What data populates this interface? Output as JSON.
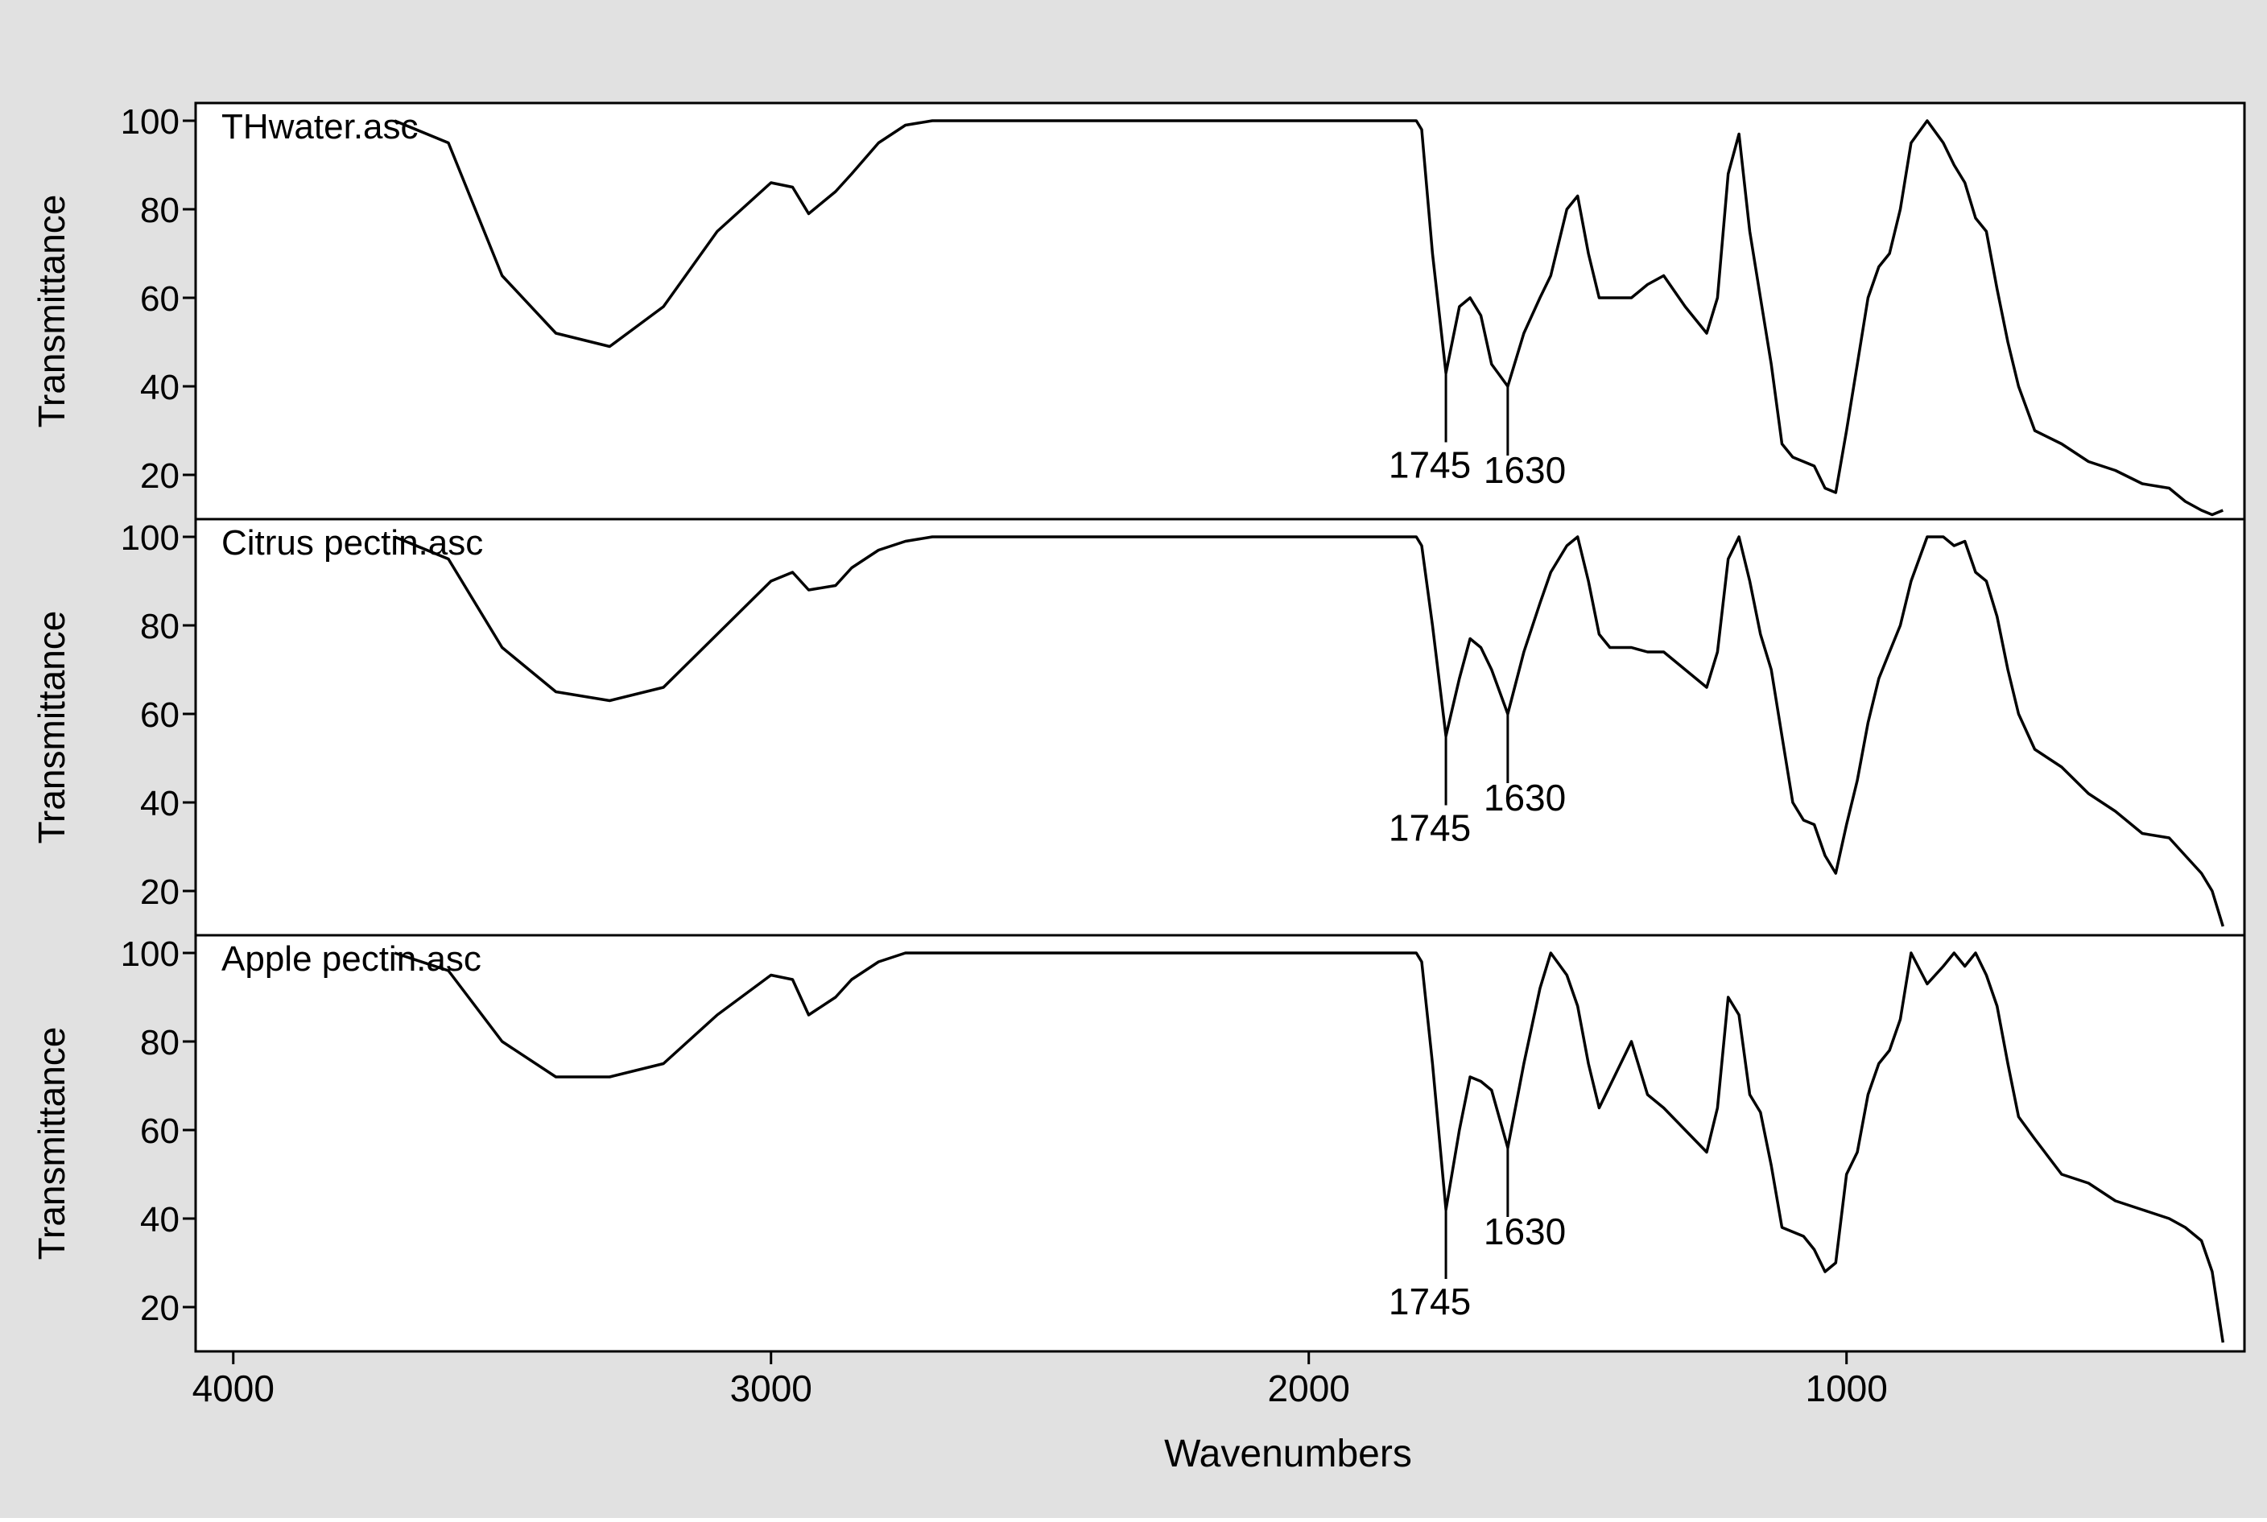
{
  "colors": {
    "frame": "#e1e1e1",
    "plot_bg": "#ffffff",
    "ink": "#000000"
  },
  "chart_data": {
    "type": "line",
    "xlabel": "Wavenumbers",
    "ylabel": "Transmittance",
    "xlim": [
      4070,
      260
    ],
    "x_ticks": [
      4000,
      3000,
      2000,
      1000
    ],
    "x_tick_labels": [
      "4000",
      "3000",
      "2000",
      "1000"
    ],
    "grid": false,
    "legend": "none",
    "panels": [
      {
        "name": "THwater.asc",
        "ylim": [
          10,
          104
        ],
        "y_ticks": [
          20,
          40,
          60,
          80,
          100
        ],
        "y_tick_labels": [
          "20",
          "40",
          "60",
          "80",
          "100"
        ],
        "annotations": [
          {
            "label": "1745",
            "x": 1745,
            "y": 43
          },
          {
            "label": "1630",
            "x": 1630,
            "y": 40
          }
        ],
        "x": [
          3700,
          3600,
          3500,
          3400,
          3300,
          3200,
          3100,
          3000,
          2960,
          2930,
          2880,
          2850,
          2800,
          2750,
          2700,
          2500,
          2300,
          2100,
          1900,
          1800,
          1790,
          1770,
          1745,
          1720,
          1700,
          1680,
          1660,
          1630,
          1600,
          1570,
          1550,
          1520,
          1500,
          1480,
          1460,
          1440,
          1400,
          1370,
          1340,
          1300,
          1260,
          1240,
          1220,
          1200,
          1180,
          1160,
          1140,
          1120,
          1100,
          1080,
          1060,
          1040,
          1020,
          1000,
          980,
          960,
          940,
          920,
          900,
          880,
          850,
          820,
          800,
          780,
          760,
          740,
          720,
          700,
          680,
          650,
          600,
          550,
          500,
          450,
          400,
          370,
          340,
          320,
          300
        ],
        "y": [
          100,
          95,
          65,
          52,
          49,
          58,
          75,
          86,
          85,
          79,
          84,
          88,
          95,
          99,
          100,
          100,
          100,
          100,
          100,
          100,
          98,
          70,
          43,
          58,
          60,
          56,
          45,
          40,
          52,
          60,
          65,
          80,
          83,
          70,
          60,
          60,
          60,
          63,
          65,
          58,
          52,
          60,
          88,
          97,
          75,
          60,
          45,
          27,
          24,
          23,
          22,
          17,
          16,
          30,
          45,
          60,
          67,
          70,
          80,
          95,
          100,
          95,
          90,
          86,
          78,
          75,
          62,
          50,
          40,
          30,
          27,
          23,
          21,
          18,
          17,
          14,
          12,
          11,
          12
        ]
      },
      {
        "name": "Citrus pectin.asc",
        "ylim": [
          10,
          104
        ],
        "y_ticks": [
          20,
          40,
          60,
          80,
          100
        ],
        "y_tick_labels": [
          "20",
          "40",
          "60",
          "80",
          "100"
        ],
        "annotations": [
          {
            "label": "1745",
            "x": 1745,
            "y": 55
          },
          {
            "label": "1630",
            "x": 1630,
            "y": 60
          }
        ],
        "x": [
          3700,
          3600,
          3500,
          3400,
          3300,
          3200,
          3100,
          3000,
          2960,
          2930,
          2880,
          2850,
          2800,
          2750,
          2700,
          2500,
          2300,
          2100,
          1900,
          1800,
          1790,
          1770,
          1745,
          1720,
          1700,
          1680,
          1660,
          1630,
          1600,
          1570,
          1550,
          1520,
          1500,
          1480,
          1460,
          1440,
          1400,
          1370,
          1340,
          1300,
          1260,
          1240,
          1220,
          1200,
          1180,
          1160,
          1140,
          1120,
          1100,
          1080,
          1060,
          1040,
          1020,
          1000,
          980,
          960,
          940,
          920,
          900,
          880,
          850,
          820,
          800,
          780,
          760,
          740,
          720,
          700,
          680,
          650,
          600,
          550,
          500,
          450,
          400,
          370,
          340,
          320,
          300
        ],
        "y": [
          100,
          95,
          75,
          65,
          63,
          66,
          78,
          90,
          92,
          88,
          89,
          93,
          97,
          99,
          100,
          100,
          100,
          100,
          100,
          100,
          98,
          80,
          55,
          68,
          77,
          75,
          70,
          60,
          74,
          85,
          92,
          98,
          100,
          90,
          78,
          75,
          75,
          74,
          74,
          70,
          66,
          74,
          95,
          100,
          90,
          78,
          70,
          55,
          40,
          36,
          35,
          28,
          24,
          35,
          45,
          58,
          68,
          74,
          80,
          90,
          100,
          100,
          98,
          99,
          92,
          90,
          82,
          70,
          60,
          52,
          48,
          42,
          38,
          33,
          32,
          28,
          24,
          20,
          12
        ]
      },
      {
        "name": "Apple pectin.asc",
        "ylim": [
          10,
          104
        ],
        "y_ticks": [
          20,
          40,
          60,
          80,
          100
        ],
        "y_tick_labels": [
          "20",
          "40",
          "60",
          "80",
          "100"
        ],
        "annotations": [
          {
            "label": "1745",
            "x": 1745,
            "y": 42
          },
          {
            "label": "1630",
            "x": 1630,
            "y": 56
          }
        ],
        "x": [
          3700,
          3600,
          3500,
          3400,
          3300,
          3200,
          3100,
          3000,
          2960,
          2930,
          2880,
          2850,
          2800,
          2750,
          2700,
          2500,
          2300,
          2100,
          1900,
          1800,
          1790,
          1770,
          1745,
          1720,
          1700,
          1680,
          1660,
          1630,
          1600,
          1570,
          1550,
          1520,
          1500,
          1480,
          1460,
          1440,
          1400,
          1370,
          1340,
          1300,
          1260,
          1240,
          1220,
          1200,
          1180,
          1160,
          1140,
          1120,
          1100,
          1080,
          1060,
          1040,
          1020,
          1000,
          980,
          960,
          940,
          920,
          900,
          880,
          850,
          820,
          800,
          780,
          760,
          740,
          720,
          700,
          680,
          650,
          600,
          550,
          500,
          450,
          400,
          370,
          340,
          320,
          300
        ],
        "y": [
          100,
          96,
          80,
          72,
          72,
          75,
          86,
          95,
          94,
          86,
          90,
          94,
          98,
          100,
          100,
          100,
          100,
          100,
          100,
          100,
          98,
          75,
          42,
          60,
          72,
          71,
          69,
          56,
          75,
          92,
          100,
          95,
          88,
          75,
          65,
          70,
          80,
          68,
          65,
          60,
          55,
          65,
          90,
          86,
          68,
          64,
          52,
          38,
          37,
          36,
          33,
          28,
          30,
          50,
          55,
          68,
          75,
          78,
          85,
          100,
          93,
          97,
          100,
          97,
          100,
          95,
          88,
          75,
          63,
          58,
          50,
          48,
          44,
          42,
          40,
          38,
          35,
          28,
          12
        ]
      }
    ]
  }
}
